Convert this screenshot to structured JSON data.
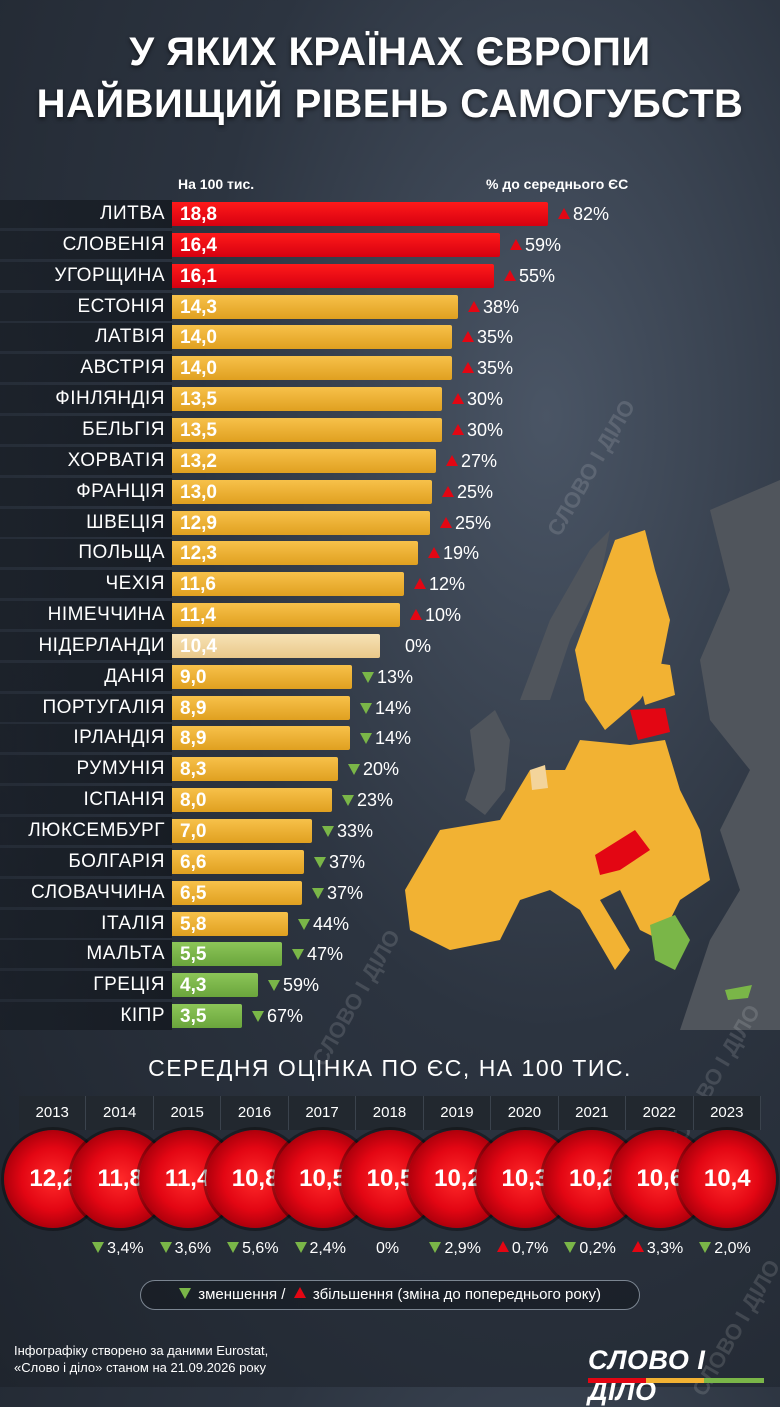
{
  "title_line1": "У ЯКИХ КРАЇНАХ ЄВРОПИ",
  "title_line2": "НАЙВИЩИЙ РІВЕНЬ САМОГУБСТВ",
  "watermark": "СЛОВО І ДІЛО",
  "colors": {
    "red": "#e30613",
    "orange": "#f2b233",
    "light": "#f3d49a",
    "green": "#7ab648",
    "up": "#e30613",
    "down": "#7ab648"
  },
  "chart_data": [
    {
      "type": "bar",
      "header_left": "На 100 тис.",
      "header_right": "% до середнього ЄС",
      "rows": [
        {
          "country": "ЛИТВА",
          "value": 18.8,
          "label": "18,8",
          "dir": "up",
          "change": "82%",
          "color": "red"
        },
        {
          "country": "СЛОВЕНІЯ",
          "value": 16.4,
          "label": "16,4",
          "dir": "up",
          "change": "59%",
          "color": "red"
        },
        {
          "country": "УГОРЩИНА",
          "value": 16.1,
          "label": "16,1",
          "dir": "up",
          "change": "55%",
          "color": "red"
        },
        {
          "country": "ЕСТОНІЯ",
          "value": 14.3,
          "label": "14,3",
          "dir": "up",
          "change": "38%",
          "color": "orange"
        },
        {
          "country": "ЛАТВІЯ",
          "value": 14.0,
          "label": "14,0",
          "dir": "up",
          "change": "35%",
          "color": "orange"
        },
        {
          "country": "АВСТРІЯ",
          "value": 14.0,
          "label": "14,0",
          "dir": "up",
          "change": "35%",
          "color": "orange"
        },
        {
          "country": "ФІНЛЯНДІЯ",
          "value": 13.5,
          "label": "13,5",
          "dir": "up",
          "change": "30%",
          "color": "orange"
        },
        {
          "country": "БЕЛЬГІЯ",
          "value": 13.5,
          "label": "13,5",
          "dir": "up",
          "change": "30%",
          "color": "orange"
        },
        {
          "country": "ХОРВАТІЯ",
          "value": 13.2,
          "label": "13,2",
          "dir": "up",
          "change": "27%",
          "color": "orange"
        },
        {
          "country": "ФРАНЦІЯ",
          "value": 13.0,
          "label": "13,0",
          "dir": "up",
          "change": "25%",
          "color": "orange"
        },
        {
          "country": "ШВЕЦІЯ",
          "value": 12.9,
          "label": "12,9",
          "dir": "up",
          "change": "25%",
          "color": "orange"
        },
        {
          "country": "ПОЛЬЩА",
          "value": 12.3,
          "label": "12,3",
          "dir": "up",
          "change": "19%",
          "color": "orange"
        },
        {
          "country": "ЧЕХІЯ",
          "value": 11.6,
          "label": "11,6",
          "dir": "up",
          "change": "12%",
          "color": "orange"
        },
        {
          "country": "НІМЕЧЧИНА",
          "value": 11.4,
          "label": "11,4",
          "dir": "up",
          "change": "10%",
          "color": "orange"
        },
        {
          "country": "НІДЕРЛАНДИ",
          "value": 10.4,
          "label": "10,4",
          "dir": "none",
          "change": "0%",
          "color": "light"
        },
        {
          "country": "ДАНІЯ",
          "value": 9.0,
          "label": "9,0",
          "dir": "down",
          "change": "13%",
          "color": "orange"
        },
        {
          "country": "ПОРТУГАЛІЯ",
          "value": 8.9,
          "label": "8,9",
          "dir": "down",
          "change": "14%",
          "color": "orange"
        },
        {
          "country": "ІРЛАНДІЯ",
          "value": 8.9,
          "label": "8,9",
          "dir": "down",
          "change": "14%",
          "color": "orange"
        },
        {
          "country": "РУМУНІЯ",
          "value": 8.3,
          "label": "8,3",
          "dir": "down",
          "change": "20%",
          "color": "orange"
        },
        {
          "country": "ІСПАНІЯ",
          "value": 8.0,
          "label": "8,0",
          "dir": "down",
          "change": "23%",
          "color": "orange"
        },
        {
          "country": "ЛЮКСЕМБУРГ",
          "value": 7.0,
          "label": "7,0",
          "dir": "down",
          "change": "33%",
          "color": "orange"
        },
        {
          "country": "БОЛГАРІЯ",
          "value": 6.6,
          "label": "6,6",
          "dir": "down",
          "change": "37%",
          "color": "orange"
        },
        {
          "country": "СЛОВАЧЧИНА",
          "value": 6.5,
          "label": "6,5",
          "dir": "down",
          "change": "37%",
          "color": "orange"
        },
        {
          "country": "ІТАЛІЯ",
          "value": 5.8,
          "label": "5,8",
          "dir": "down",
          "change": "44%",
          "color": "orange"
        },
        {
          "country": "МАЛЬТА",
          "value": 5.5,
          "label": "5,5",
          "dir": "down",
          "change": "47%",
          "color": "green"
        },
        {
          "country": "ГРЕЦІЯ",
          "value": 4.3,
          "label": "4,3",
          "dir": "down",
          "change": "59%",
          "color": "green"
        },
        {
          "country": "КІПР",
          "value": 3.5,
          "label": "3,5",
          "dir": "down",
          "change": "67%",
          "color": "green"
        }
      ]
    },
    {
      "type": "table",
      "title": "СЕРЕДНЯ ОЦІНКА ПО ЄС, НА 100 ТИС.",
      "years": [
        "2013",
        "2014",
        "2015",
        "2016",
        "2017",
        "2018",
        "2019",
        "2020",
        "2021",
        "2022",
        "2023"
      ],
      "values": [
        12.2,
        11.8,
        11.4,
        10.8,
        10.5,
        10.5,
        10.2,
        10.3,
        10.2,
        10.6,
        10.4
      ],
      "labels": [
        "12,2",
        "11,8",
        "11,4",
        "10,8",
        "10,5",
        "10,5",
        "10,2",
        "10,3",
        "10,2",
        "10,6",
        "10,4"
      ],
      "changes": [
        {
          "dir": "none",
          "text": ""
        },
        {
          "dir": "down",
          "text": "3,4%"
        },
        {
          "dir": "down",
          "text": "3,6%"
        },
        {
          "dir": "down",
          "text": "5,6%"
        },
        {
          "dir": "down",
          "text": "2,4%"
        },
        {
          "dir": "none",
          "text": "0%"
        },
        {
          "dir": "down",
          "text": "2,9%"
        },
        {
          "dir": "up",
          "text": "0,7%"
        },
        {
          "dir": "down",
          "text": "0,2%"
        },
        {
          "dir": "up",
          "text": "3,3%"
        },
        {
          "dir": "down",
          "text": "2,0%"
        }
      ]
    }
  ],
  "legend": {
    "decrease": "зменшення /",
    "increase": "збільшення (зміна до попереднього року)"
  },
  "footer": {
    "line1": "Інфографіку створено за даними Eurostat,",
    "line2": "«Слово і діло» станом на 21.09.2026 року"
  },
  "logo": "СЛОВО І ДІЛО"
}
